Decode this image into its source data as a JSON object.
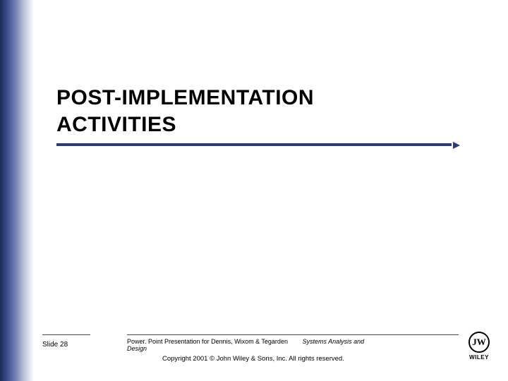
{
  "slide": {
    "title_line1": "POST-IMPLEMENTATION",
    "title_line2": "ACTIVITIES",
    "number_label": "Slide 28"
  },
  "footer": {
    "presentation_for": "Power. Point Presentation for Dennis, Wixom & Tegarden",
    "book_title": "Systems Analysis and",
    "book_title_line2": "Design",
    "copyright": "Copyright 2001 © John Wiley & Sons, Inc.  All rights reserved."
  },
  "logo": {
    "mark": "JW",
    "name": "WILEY"
  },
  "colors": {
    "accent": "#2a3a7a",
    "gradient_dark": "#1a2a5a",
    "background": "#ffffff",
    "text": "#000000"
  }
}
